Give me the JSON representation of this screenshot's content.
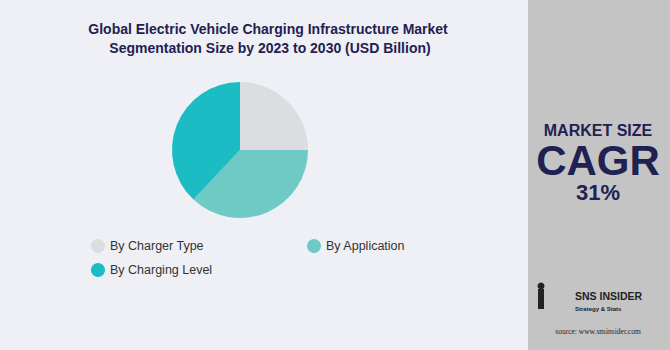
{
  "chart_data": {
    "type": "pie",
    "title": "Global Electric Vehicle Charging Infrastructure Market Segmentation Size by 2023 to 2030 (USD Billion)",
    "categories": [
      "By Charger Type",
      "By Application",
      "By Charging Level"
    ],
    "values": [
      25,
      37,
      38
    ],
    "colors": [
      "#dcdde1",
      "#6fcac6",
      "#1bbcc4"
    ],
    "legend": "bottom",
    "data_labels": false,
    "annotations": [
      "MARKET SIZE",
      "CAGR",
      "31%",
      "SNS INSIDER",
      "Strategy & Stats",
      "source: www.snsinsider.com"
    ]
  }
}
